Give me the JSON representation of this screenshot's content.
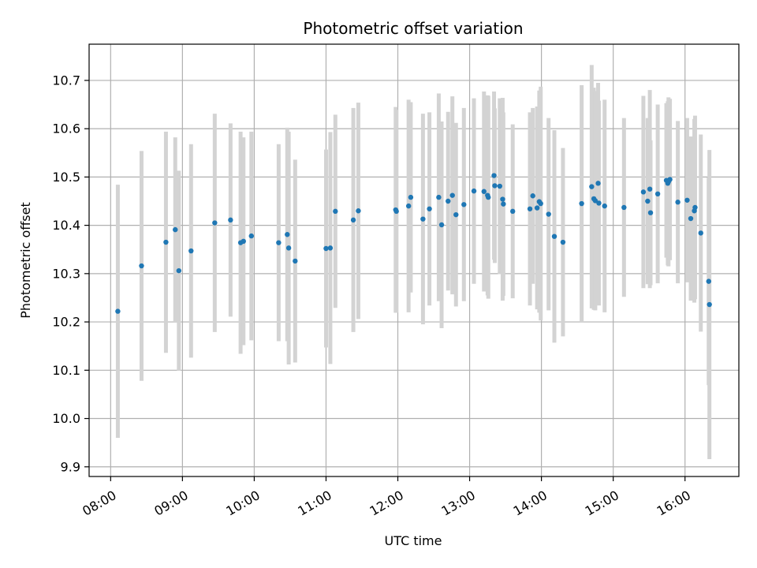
{
  "chart_data": {
    "type": "scatter",
    "title": "Photometric offset variation",
    "xlabel": "UTC time",
    "ylabel": "Photometric offset",
    "xlim": [
      -0.3,
      8.75
    ],
    "ylim": [
      9.88,
      10.775
    ],
    "grid": true,
    "x_unit": "hours after 08:00 UTC",
    "xticks": [
      0,
      1,
      2,
      3,
      4,
      5,
      6,
      7,
      8
    ],
    "xtick_labels": [
      "08:00",
      "09:00",
      "10:00",
      "11:00",
      "12:00",
      "13:00",
      "14:00",
      "15:00",
      "16:00"
    ],
    "yticks": [
      9.9,
      10.0,
      10.1,
      10.2,
      10.3,
      10.4,
      10.5,
      10.6,
      10.7
    ],
    "ytick_labels": [
      "9.9",
      "10.0",
      "10.1",
      "10.2",
      "10.3",
      "10.4",
      "10.5",
      "10.6",
      "10.7"
    ],
    "colors": {
      "points": "#1f77b4",
      "errorbars": "#d3d3d3",
      "grid": "#b0b0b0",
      "frame": "#000000"
    },
    "series": [
      {
        "name": "offset",
        "x": [
          0.1,
          0.43,
          0.77,
          0.9,
          0.95,
          1.12,
          1.45,
          1.67,
          1.81,
          1.85,
          1.96,
          2.34,
          2.46,
          2.48,
          2.57,
          3.0,
          3.06,
          3.13,
          3.38,
          3.45,
          3.97,
          3.98,
          4.15,
          4.18,
          4.35,
          4.44,
          4.57,
          4.61,
          4.7,
          4.76,
          4.81,
          4.92,
          5.06,
          5.2,
          5.25,
          5.26,
          5.34,
          5.35,
          5.42,
          5.46,
          5.47,
          5.6,
          5.84,
          5.88,
          5.94,
          5.97,
          5.99,
          6.1,
          6.18,
          6.3,
          6.56,
          6.7,
          6.73,
          6.75,
          6.79,
          6.8,
          6.88,
          7.15,
          7.42,
          7.48,
          7.51,
          7.52,
          7.62,
          7.74,
          7.76,
          7.77,
          7.79,
          7.9,
          8.03,
          8.08,
          8.13,
          8.14,
          8.22,
          8.33,
          8.34
        ],
        "y": [
          10.222,
          10.316,
          10.365,
          10.391,
          10.306,
          10.347,
          10.405,
          10.411,
          10.364,
          10.367,
          10.378,
          10.364,
          10.381,
          10.353,
          10.326,
          10.352,
          10.353,
          10.429,
          10.411,
          10.43,
          10.432,
          10.429,
          10.44,
          10.458,
          10.413,
          10.434,
          10.458,
          10.401,
          10.45,
          10.462,
          10.422,
          10.443,
          10.471,
          10.47,
          10.462,
          10.458,
          10.503,
          10.482,
          10.481,
          10.454,
          10.444,
          10.429,
          10.434,
          10.461,
          10.436,
          10.449,
          10.445,
          10.423,
          10.377,
          10.365,
          10.445,
          10.48,
          10.455,
          10.451,
          10.487,
          10.446,
          10.44,
          10.437,
          10.469,
          10.45,
          10.475,
          10.426,
          10.465,
          10.493,
          10.487,
          10.49,
          10.495,
          10.448,
          10.452,
          10.414,
          10.43,
          10.437,
          10.384,
          10.284,
          10.236
        ],
        "yerr": [
          0.262,
          0.238,
          0.229,
          0.191,
          0.207,
          0.221,
          0.226,
          0.2,
          0.23,
          0.215,
          0.216,
          0.204,
          0.221,
          0.241,
          0.21,
          0.205,
          0.24,
          0.2,
          0.232,
          0.224,
          0.213,
          0.21,
          0.22,
          0.197,
          0.218,
          0.2,
          0.215,
          0.214,
          0.185,
          0.205,
          0.19,
          0.2,
          0.192,
          0.207,
          0.207,
          0.21,
          0.174,
          0.16,
          0.182,
          0.21,
          0.19,
          0.18,
          0.2,
          0.182,
          0.21,
          0.23,
          0.242,
          0.199,
          0.22,
          0.195,
          0.245,
          0.252,
          0.23,
          0.227,
          0.208,
          0.212,
          0.22,
          0.185,
          0.199,
          0.172,
          0.205,
          0.15,
          0.185,
          0.16,
          0.17,
          0.175,
          0.167,
          0.168,
          0.17,
          0.17,
          0.19,
          0.19,
          0.204,
          0.215,
          0.32
        ]
      }
    ]
  }
}
